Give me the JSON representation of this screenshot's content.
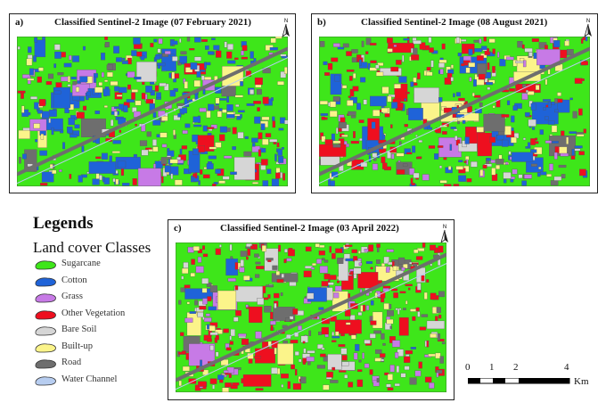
{
  "panels": [
    {
      "label": "a)",
      "title": "Classified Sentinel-2 Image (07 February 2021)",
      "north": "N",
      "seed": 11,
      "mix": {
        "sugarcane": 0.52,
        "cotton": 0.2,
        "grass": 0.04,
        "other": 0.08,
        "bare": 0.05,
        "builtup": 0.08,
        "road": 0.03
      }
    },
    {
      "label": "b)",
      "title": "Classified Sentinel-2 Image (08 August 2021)",
      "north": "N",
      "seed": 23,
      "mix": {
        "sugarcane": 0.55,
        "cotton": 0.12,
        "grass": 0.04,
        "other": 0.11,
        "bare": 0.05,
        "builtup": 0.08,
        "road": 0.05
      }
    },
    {
      "label": "c)",
      "title": "Classified Sentinel-2 Image (03 April 2022)",
      "north": "N",
      "seed": 37,
      "mix": {
        "sugarcane": 0.66,
        "cotton": 0.02,
        "grass": 0.04,
        "other": 0.12,
        "bare": 0.07,
        "builtup": 0.04,
        "road": 0.05
      }
    }
  ],
  "legend": {
    "heading": "Legends",
    "subheading": "Land cover Classes",
    "items": [
      {
        "key": "sugarcane",
        "label": "Sugarcane",
        "color": "#3ee61a"
      },
      {
        "key": "cotton",
        "label": "Cotton",
        "color": "#1f63d8"
      },
      {
        "key": "grass",
        "label": "Grass",
        "color": "#c77ae6"
      },
      {
        "key": "other",
        "label": "Other Vegetation",
        "color": "#ee0f1f"
      },
      {
        "key": "bare",
        "label": "Bare Soil",
        "color": "#d6d6d6"
      },
      {
        "key": "builtup",
        "label": "Built-up",
        "color": "#fbf48a"
      },
      {
        "key": "road",
        "label": "Road",
        "color": "#6e6e6e"
      },
      {
        "key": "water",
        "label": "Water Channel",
        "color": "#b7cdf0"
      }
    ]
  },
  "scalebar": {
    "ticks": [
      "0",
      "1",
      "2",
      "4"
    ],
    "unit": "Km"
  }
}
